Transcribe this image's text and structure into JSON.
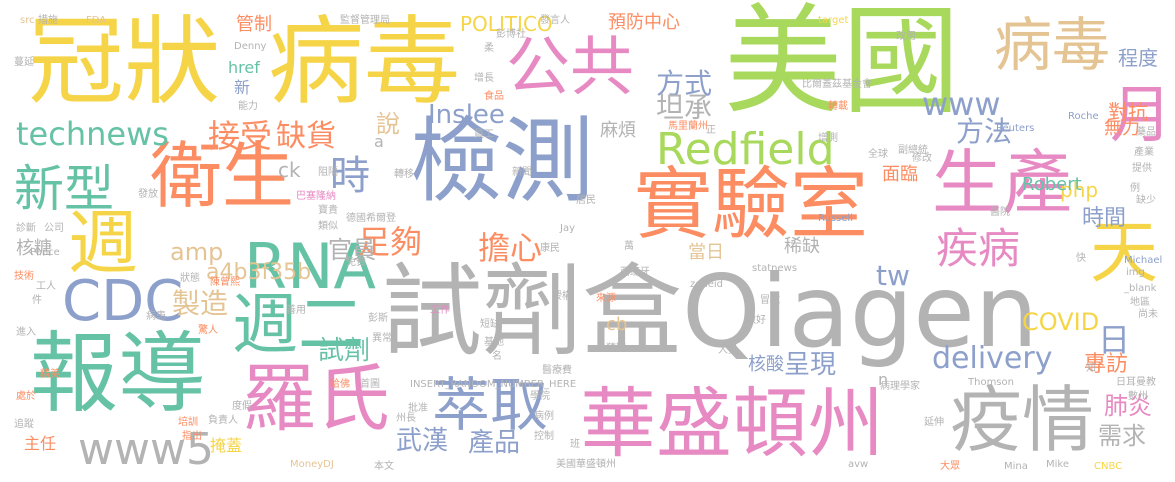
{
  "colors": {
    "yellow": "#f5d547",
    "green": "#a8d95c",
    "teal": "#66c2a5",
    "orange": "#fc8d62",
    "blue": "#8da0cb",
    "pink": "#e78ac3",
    "tan": "#e5c494",
    "gray": "#b3b3b3",
    "background": "#ffffff"
  },
  "words": [
    {
      "text": "冠狀",
      "color": "yellow"
    },
    {
      "text": "病毒",
      "color": "yellow"
    },
    {
      "text": "美國",
      "color": "green"
    },
    {
      "text": "公共",
      "color": "pink"
    },
    {
      "text": "病毒",
      "color": "tan"
    },
    {
      "text": "檢測",
      "color": "blue"
    },
    {
      "text": "實驗室",
      "color": "orange"
    },
    {
      "text": "試劑盒Qiagen",
      "color": "gray"
    },
    {
      "text": "華盛頓州",
      "color": "pink"
    },
    {
      "text": "報導",
      "color": "teal"
    },
    {
      "text": "衛生",
      "color": "orange"
    },
    {
      "text": "生產",
      "color": "pink"
    },
    {
      "text": "羅氏",
      "color": "pink"
    },
    {
      "text": "疫情",
      "color": "gray"
    },
    {
      "text": "天",
      "color": "yellow"
    },
    {
      "text": "月",
      "color": "pink"
    },
    {
      "text": "週",
      "color": "yellow"
    },
    {
      "text": "週二",
      "color": "teal"
    },
    {
      "text": "RNA",
      "color": "teal"
    },
    {
      "text": "CDC",
      "color": "blue"
    },
    {
      "text": "新型",
      "color": "teal"
    },
    {
      "text": "Redfield",
      "color": "green"
    },
    {
      "text": "萃取",
      "color": "blue"
    },
    {
      "text": "www5",
      "color": "gray"
    },
    {
      "text": "technews",
      "color": "teal"
    },
    {
      "text": "接受",
      "color": "orange"
    },
    {
      "text": "缺貨",
      "color": "orange"
    },
    {
      "text": "時",
      "color": "blue"
    },
    {
      "text": "足夠",
      "color": "orange"
    },
    {
      "text": "擔心",
      "color": "orange"
    },
    {
      "text": "疾病",
      "color": "pink"
    },
    {
      "text": "方式",
      "color": "blue"
    },
    {
      "text": "坦承",
      "color": "gray"
    },
    {
      "text": "方法",
      "color": "blue"
    },
    {
      "text": "www",
      "color": "blue"
    },
    {
      "text": "Inslee",
      "color": "blue"
    },
    {
      "text": "delivery",
      "color": "blue"
    },
    {
      "text": "COVID",
      "color": "yellow"
    },
    {
      "text": "amp",
      "color": "tan"
    },
    {
      "text": "a4b3f35b",
      "color": "tan"
    },
    {
      "text": "官員",
      "color": "gray"
    },
    {
      "text": "製造",
      "color": "tan"
    },
    {
      "text": "試劑",
      "color": "teal"
    },
    {
      "text": "武漢",
      "color": "blue"
    },
    {
      "text": "產品",
      "color": "blue"
    },
    {
      "text": "呈現",
      "color": "blue"
    },
    {
      "text": "肺炎",
      "color": "pink"
    },
    {
      "text": "需求",
      "color": "gray"
    },
    {
      "text": "專訪",
      "color": "orange"
    },
    {
      "text": "日",
      "color": "blue"
    },
    {
      "text": "時間",
      "color": "blue"
    },
    {
      "text": "對抗",
      "color": "orange"
    },
    {
      "text": "無力",
      "color": "orange"
    },
    {
      "text": "程度",
      "color": "blue"
    },
    {
      "text": "POLITICO",
      "color": "yellow"
    },
    {
      "text": "預防中心",
      "color": "orange"
    },
    {
      "text": "管制",
      "color": "orange"
    },
    {
      "text": "href",
      "color": "teal"
    },
    {
      "text": "麻煩",
      "color": "gray"
    },
    {
      "text": "說",
      "color": "tan"
    },
    {
      "text": "tw",
      "color": "blue"
    },
    {
      "text": "php",
      "color": "yellow"
    },
    {
      "text": "Robert",
      "color": "teal"
    },
    {
      "text": "面臨",
      "color": "orange"
    },
    {
      "text": "核糖",
      "color": "gray"
    },
    {
      "text": "當日",
      "color": "tan"
    },
    {
      "text": "稀缺",
      "color": "gray"
    },
    {
      "text": "核酸",
      "color": "blue"
    },
    {
      "text": "ck",
      "color": "gray"
    },
    {
      "text": "cb",
      "color": "tan"
    },
    {
      "text": "主任",
      "color": "orange"
    },
    {
      "text": "掩蓋",
      "color": "yellow"
    },
    {
      "text": "新",
      "color": "blue"
    },
    {
      "text": "a",
      "color": "gray"
    },
    {
      "text": "n",
      "color": "gray"
    },
    {
      "text": "監督管理局",
      "color": "gray"
    },
    {
      "text": "發言人",
      "color": "gray"
    },
    {
      "text": "彭博社",
      "color": "gray"
    },
    {
      "text": "src",
      "color": "tan"
    },
    {
      "text": "FDA",
      "color": "tan"
    },
    {
      "text": "Denny",
      "color": "gray"
    },
    {
      "text": "target",
      "color": "yellow"
    },
    {
      "text": "改用",
      "color": "gray"
    },
    {
      "text": "比爾蓋茲基金會",
      "color": "gray"
    },
    {
      "text": "轉載",
      "color": "orange"
    },
    {
      "text": "馬里蘭州",
      "color": "orange"
    },
    {
      "text": "員工",
      "color": "gray"
    },
    {
      "text": "增長",
      "color": "gray"
    },
    {
      "text": "食品",
      "color": "orange"
    },
    {
      "text": "能力",
      "color": "gray"
    },
    {
      "text": "Reuters",
      "color": "blue"
    },
    {
      "text": "Roche",
      "color": "blue"
    },
    {
      "text": "藥品",
      "color": "gray"
    },
    {
      "text": "產業",
      "color": "gray"
    },
    {
      "text": "提供",
      "color": "gray"
    },
    {
      "text": "副總統",
      "color": "gray"
    },
    {
      "text": "全球",
      "color": "gray"
    },
    {
      "text": "增測",
      "color": "gray"
    },
    {
      "text": "修改",
      "color": "gray"
    },
    {
      "text": "Pence",
      "color": "gray"
    },
    {
      "text": "德國希爾登",
      "color": "gray"
    },
    {
      "text": "巴塞隆納",
      "color": "pink"
    },
    {
      "text": "居民",
      "color": "gray"
    },
    {
      "text": "Russell",
      "color": "blue"
    },
    {
      "text": "醫院",
      "color": "gray"
    },
    {
      "text": "Jay",
      "color": "gray"
    },
    {
      "text": "康民",
      "color": "gray"
    },
    {
      "text": "西班牙",
      "color": "gray"
    },
    {
      "text": "Michael",
      "color": "blue"
    },
    {
      "text": "img",
      "color": "gray"
    },
    {
      "text": "statnews",
      "color": "gray"
    },
    {
      "text": "zoneid",
      "color": "gray"
    },
    {
      "text": "_blank",
      "color": "gray"
    },
    {
      "text": "地區",
      "color": "gray"
    },
    {
      "text": "尚未",
      "color": "gray"
    },
    {
      "text": "彭斯",
      "color": "gray"
    },
    {
      "text": "INSERT_RANDOM_NUMBER_HERE",
      "color": "gray"
    },
    {
      "text": "病理學家",
      "color": "gray"
    },
    {
      "text": "日耳曼教",
      "color": "gray"
    },
    {
      "text": "Thomson",
      "color": "gray"
    },
    {
      "text": "MoneyDJ",
      "color": "tan"
    },
    {
      "text": "本文",
      "color": "gray"
    },
    {
      "text": "美國華盛頓州",
      "color": "gray"
    },
    {
      "text": "avw",
      "color": "gray"
    },
    {
      "text": "Mina",
      "color": "gray"
    },
    {
      "text": "Mike",
      "color": "gray"
    },
    {
      "text": "CNBC",
      "color": "yellow"
    },
    {
      "text": "大眾",
      "color": "orange"
    },
    {
      "text": "延伸",
      "color": "gray"
    },
    {
      "text": "培訓",
      "color": "orange"
    },
    {
      "text": "指出",
      "color": "orange"
    },
    {
      "text": "負責人",
      "color": "gray"
    },
    {
      "text": "追蹤",
      "color": "gray"
    },
    {
      "text": "處於",
      "color": "orange"
    },
    {
      "text": "技術",
      "color": "orange"
    },
    {
      "text": "診斷",
      "color": "gray"
    },
    {
      "text": "公司",
      "color": "gray"
    },
    {
      "text": "蔓延",
      "color": "gray"
    },
    {
      "text": "措施",
      "color": "gray"
    },
    {
      "text": "發放",
      "color": "gray"
    },
    {
      "text": "病患",
      "color": "gray"
    },
    {
      "text": "驚人",
      "color": "orange"
    },
    {
      "text": "善用",
      "color": "gray"
    },
    {
      "text": "來源",
      "color": "orange"
    },
    {
      "text": "授權",
      "color": "gray"
    },
    {
      "text": "短缺",
      "color": "gray"
    },
    {
      "text": "預期",
      "color": "gray"
    },
    {
      "text": "基地",
      "color": "gray"
    },
    {
      "text": "名",
      "color": "gray"
    },
    {
      "text": "控制",
      "color": "gray"
    },
    {
      "text": "批准",
      "color": "gray"
    },
    {
      "text": "學院",
      "color": "gray"
    },
    {
      "text": "病例",
      "color": "gray"
    },
    {
      "text": "州長",
      "color": "gray"
    },
    {
      "text": "寶貴",
      "color": "gray"
    },
    {
      "text": "類似",
      "color": "gray"
    },
    {
      "text": "免費",
      "color": "gray"
    },
    {
      "text": "阻隔",
      "color": "gray"
    },
    {
      "text": "哈佛",
      "color": "orange"
    },
    {
      "text": "首圖",
      "color": "gray"
    },
    {
      "text": "陳曾熙",
      "color": "orange"
    },
    {
      "text": "狀態",
      "color": "gray"
    },
    {
      "text": "工人",
      "color": "gray"
    },
    {
      "text": "件",
      "color": "gray"
    },
    {
      "text": "進入",
      "color": "gray"
    },
    {
      "text": "人員",
      "color": "gray"
    },
    {
      "text": "做好",
      "color": "gray"
    },
    {
      "text": "冒試",
      "color": "gray"
    },
    {
      "text": "醫療費",
      "color": "gray"
    },
    {
      "text": "知",
      "color": "gray"
    },
    {
      "text": "新聞",
      "color": "gray"
    },
    {
      "text": "轉移",
      "color": "gray"
    },
    {
      "text": "正",
      "color": "gray"
    },
    {
      "text": "萬",
      "color": "gray"
    },
    {
      "text": "例",
      "color": "gray"
    },
    {
      "text": "快",
      "color": "gray"
    },
    {
      "text": "柔",
      "color": "gray"
    },
    {
      "text": "工作",
      "color": "pink"
    },
    {
      "text": "異常",
      "color": "gray"
    },
    {
      "text": "度假",
      "color": "gray"
    },
    {
      "text": "班",
      "color": "gray"
    },
    {
      "text": "缺少",
      "color": "gray"
    },
    {
      "text": "數州",
      "color": "gray"
    },
    {
      "text": "精美",
      "color": "orange"
    }
  ]
}
